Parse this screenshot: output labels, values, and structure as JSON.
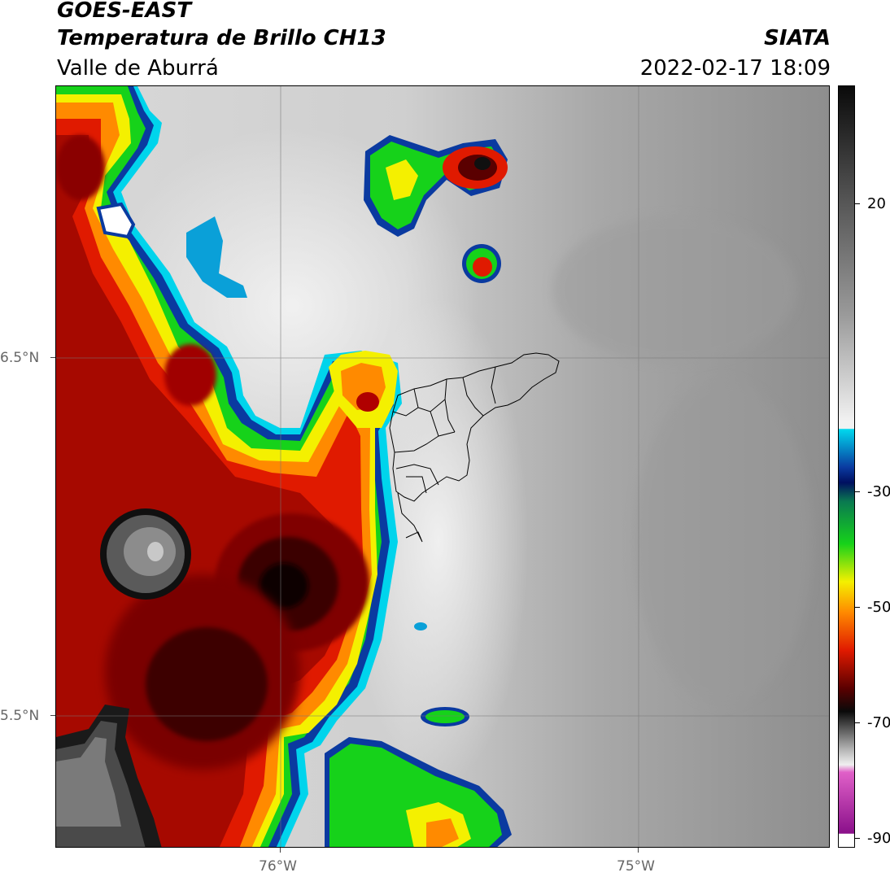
{
  "header": {
    "satellite": "GOES-EAST",
    "product": "Temperatura de Brillo CH13",
    "brand": "SIATA",
    "region": "Valle de Aburrá",
    "datetime": "2022-02-17 18:09"
  },
  "axes": {
    "lat_labels": [
      "6.5°N",
      "5.5°N"
    ],
    "lon_labels": [
      "76°W",
      "75°W"
    ]
  },
  "colorbar": {
    "tick_labels": [
      "20",
      "-30",
      "-50",
      "-70",
      "-90"
    ],
    "colors": {
      "warm_top": "#0a0a0a",
      "warm_mid": "#9a9a9a",
      "warm_low": "#f2f2f2",
      "cyan": "#00d8ee",
      "blue": "#0a3aa0",
      "navy": "#001060",
      "green": "#16d21a",
      "yellow": "#f4f000",
      "orange": "#ff8a00",
      "red": "#e01a00",
      "dark_red": "#5a0000",
      "cold_gray": "#b4b4b4",
      "pink": "#e060c8",
      "purple": "#8a108a"
    }
  }
}
